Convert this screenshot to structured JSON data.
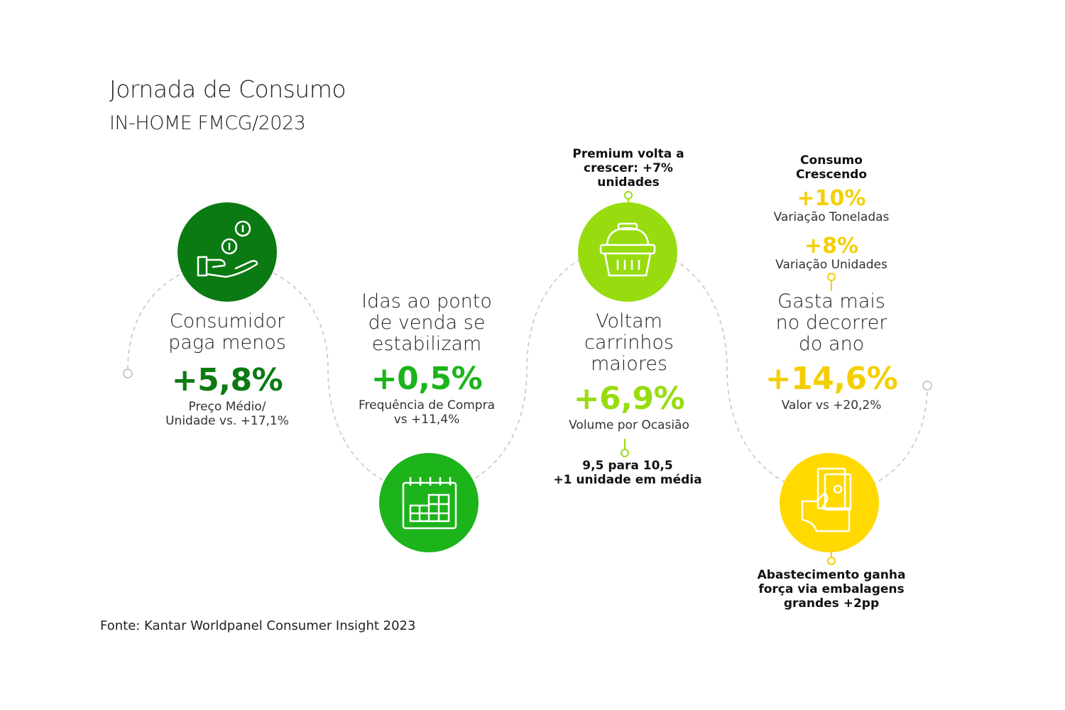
{
  "header": {
    "title": "Jornada de Consumo",
    "subtitle": "IN-HOME FMCG/2023"
  },
  "colors": {
    "dark_green": "#0b7a12",
    "green": "#1cb31b",
    "lime": "#98dc10",
    "yellow": "#ffd900",
    "yellow_text": "#f4cf00",
    "dash": "#c8c8c8"
  },
  "steps": [
    {
      "icon": "hand-coins-icon",
      "heading_lines": [
        "Consumidor",
        "paga menos"
      ],
      "value": "+5,8%",
      "detail_lines": [
        "Preço Médio/",
        "Unidade vs. +17,1%"
      ]
    },
    {
      "icon": "calendar-icon",
      "heading_lines": [
        "Idas ao ponto",
        "de venda se",
        "estabilizam"
      ],
      "value": "+0,5%",
      "detail_lines": [
        "Frequência de Compra",
        "vs +11,4%"
      ]
    },
    {
      "icon": "basket-icon",
      "top_note_lines": [
        "Premium volta a",
        "crescer: +7%",
        "unidades"
      ],
      "heading_lines": [
        "Voltam",
        "carrinhos",
        "maiores"
      ],
      "value": "+6,9%",
      "detail_lines": [
        "Volume por Ocasião"
      ],
      "bottom_note_lines": [
        "9,5 para 10,5",
        "+1 unidade em média"
      ]
    },
    {
      "icon": "hand-money-icon",
      "top_note_lines": [
        "Consumo",
        "Crescendo"
      ],
      "metrics": [
        {
          "value": "+10%",
          "label": "Variação Toneladas"
        },
        {
          "value": "+8%",
          "label": "Variação Unidades"
        }
      ],
      "heading_lines": [
        "Gasta mais",
        "no decorrer",
        "do ano"
      ],
      "value": "+14,6%",
      "detail_lines": [
        "Valor vs +20,2%"
      ],
      "bottom_note_lines": [
        "Abastecimento ganha",
        "força via embalagens",
        "grandes +2pp"
      ]
    }
  ],
  "footer": {
    "source": "Fonte: Kantar Worldpanel Consumer Insight 2023"
  }
}
